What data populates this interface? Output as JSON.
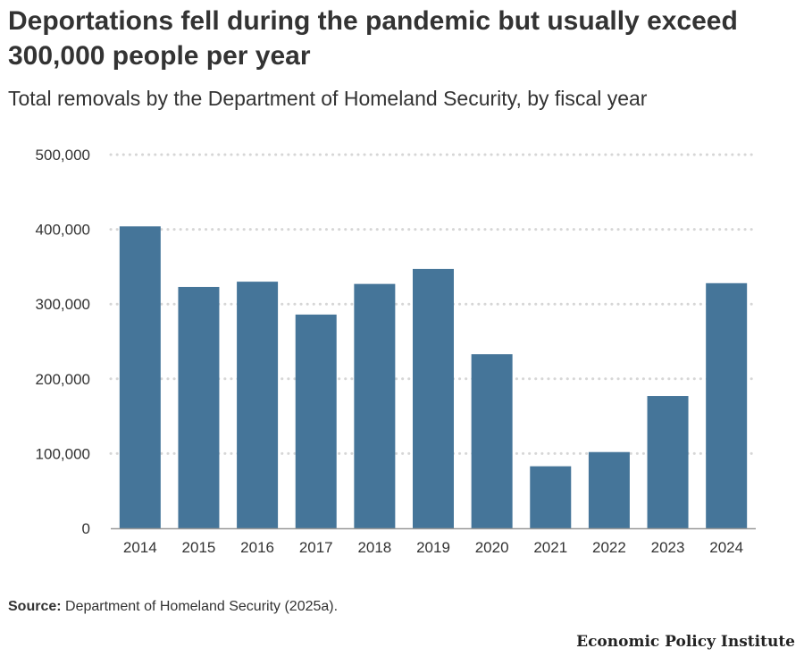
{
  "title": "Deportations fell during the pandemic but usually exceed 300,000 people per year",
  "subtitle": "Total removals by the Department of Homeland Security, by fiscal year",
  "source": {
    "label": "Source:",
    "text": "Department of Homeland Security (2025a)."
  },
  "brand": "Economic Policy Institute",
  "colors": {
    "bar": "#457599",
    "grid": "#d6d6d6",
    "axis": "#999999",
    "text": "#333333"
  },
  "chart_data": {
    "type": "bar",
    "title": "Deportations fell during the pandemic but usually exceed 300,000 people per year",
    "subtitle": "Total removals by the Department of Homeland Security, by fiscal year",
    "xlabel": "",
    "ylabel": "",
    "categories": [
      "2014",
      "2015",
      "2016",
      "2017",
      "2018",
      "2019",
      "2020",
      "2021",
      "2022",
      "2023",
      "2024"
    ],
    "values": [
      404000,
      323000,
      330000,
      286000,
      327000,
      347000,
      233000,
      83000,
      102000,
      177000,
      328000
    ],
    "ylim": [
      0,
      500000
    ],
    "yticks": [
      0,
      100000,
      200000,
      300000,
      400000,
      500000
    ],
    "ytick_labels": [
      "0",
      "100,000",
      "200,000",
      "300,000",
      "400,000",
      "500,000"
    ],
    "grid": true,
    "grid_style": "dotted-horizontal",
    "legend": "none"
  }
}
